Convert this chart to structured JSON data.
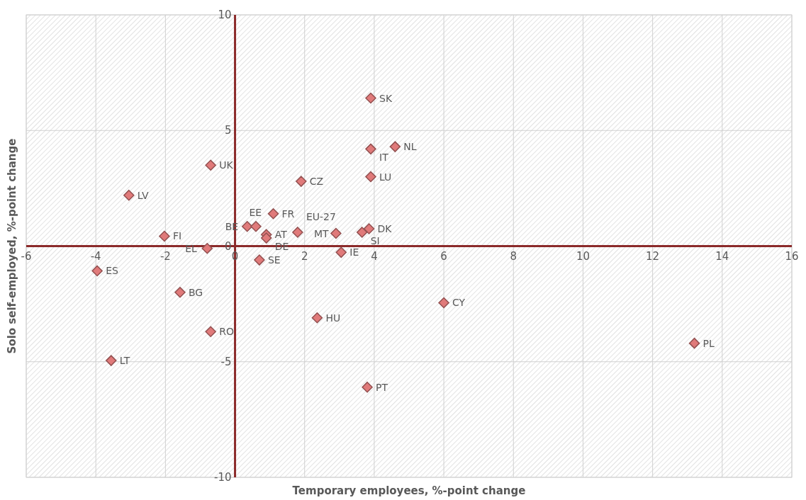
{
  "chart_data": {
    "type": "scatter",
    "xlabel": "Temporary employees, %-point change",
    "ylabel": "Solo self-employed, %-point change",
    "xlim": [
      -6,
      16
    ],
    "xticks": [
      -6,
      -4,
      -2,
      0,
      2,
      4,
      6,
      8,
      10,
      12,
      14,
      16
    ],
    "ylim": [
      -10,
      10
    ],
    "yticks": [
      -10,
      -5,
      0,
      5,
      10
    ],
    "grid": true,
    "marker": "diamond",
    "series": [
      {
        "color": "#e07a7a",
        "x": [
          3.9,
          3.9,
          4.6,
          3.9,
          -0.7,
          1.9,
          -3.05,
          1.1,
          0.35,
          0.6,
          0.9,
          0.9,
          1.8,
          2.9,
          3.65,
          3.85,
          3.05,
          -2.03,
          -0.8,
          0.7,
          -3.96,
          -1.58,
          -0.7,
          -3.56,
          2.36,
          6.0,
          13.2,
          3.8
        ],
        "values": [
          6.4,
          4.2,
          4.3,
          3.0,
          3.5,
          2.8,
          2.2,
          1.4,
          0.85,
          0.85,
          0.5,
          0.35,
          0.6,
          0.55,
          0.6,
          0.75,
          -0.27,
          0.43,
          -0.1,
          -0.6,
          -1.07,
          -2.0,
          -3.7,
          -4.95,
          -3.1,
          -2.45,
          -4.2,
          -6.1
        ]
      }
    ],
    "annotations": [
      {
        "text": "SK",
        "x": 3.9,
        "y": 6.4
      },
      {
        "text": "IT",
        "x": 3.9,
        "y": 4.2
      },
      {
        "text": "NL",
        "x": 4.6,
        "y": 4.3
      },
      {
        "text": "LU",
        "x": 3.9,
        "y": 3.0
      },
      {
        "text": "UK",
        "x": -0.7,
        "y": 3.5
      },
      {
        "text": "CZ",
        "x": 1.9,
        "y": 2.8
      },
      {
        "text": "LV",
        "x": -3.05,
        "y": 2.2
      },
      {
        "text": "FR",
        "x": 1.1,
        "y": 1.4
      },
      {
        "text": "BE",
        "x": 0.35,
        "y": 0.85
      },
      {
        "text": "EE",
        "x": 0.6,
        "y": 0.85
      },
      {
        "text": "AT",
        "x": 0.9,
        "y": 0.5
      },
      {
        "text": "DE",
        "x": 0.9,
        "y": 0.35
      },
      {
        "text": "EU-27",
        "x": 1.8,
        "y": 0.6
      },
      {
        "text": "MT",
        "x": 2.9,
        "y": 0.55
      },
      {
        "text": "SI",
        "x": 3.65,
        "y": 0.6
      },
      {
        "text": "DK",
        "x": 3.85,
        "y": 0.75
      },
      {
        "text": "IE",
        "x": 3.05,
        "y": -0.27
      },
      {
        "text": "FI",
        "x": -2.03,
        "y": 0.43
      },
      {
        "text": "EL",
        "x": -0.8,
        "y": -0.1
      },
      {
        "text": "SE",
        "x": 0.7,
        "y": -0.6
      },
      {
        "text": "ES",
        "x": -3.96,
        "y": -1.07
      },
      {
        "text": "BG",
        "x": -1.58,
        "y": -2.0
      },
      {
        "text": "RO",
        "x": -0.7,
        "y": -3.7
      },
      {
        "text": "LT",
        "x": -3.56,
        "y": -4.95
      },
      {
        "text": "HU",
        "x": 2.36,
        "y": -3.1
      },
      {
        "text": "CY",
        "x": 6.0,
        "y": -2.45
      },
      {
        "text": "PL",
        "x": 13.2,
        "y": -4.2
      },
      {
        "text": "PT",
        "x": 3.8,
        "y": -6.1
      }
    ]
  }
}
